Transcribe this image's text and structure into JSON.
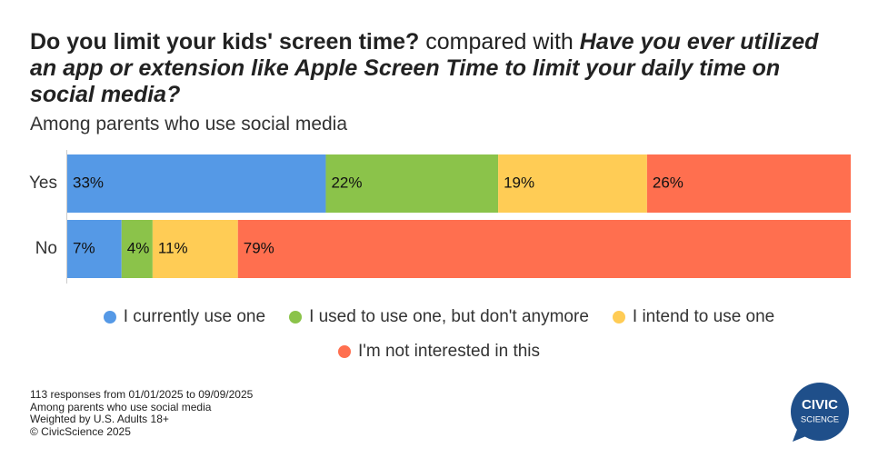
{
  "chart_data": {
    "type": "stacked-bar-horizontal",
    "title": [
      "Do you limit your kids' screen time?",
      "compared with",
      "Have you ever utilized an app or extension like Apple Screen Time to limit your daily time on social media?"
    ],
    "subtitle": "Among parents who use social media",
    "categories": [
      "Yes",
      "No"
    ],
    "series": [
      {
        "name": "I currently use one",
        "color": "#5599e6",
        "values": [
          33,
          7
        ],
        "value_labels": [
          "33%",
          "7%"
        ]
      },
      {
        "name": "I used to use one, but don't anymore",
        "color": "#8bc34a",
        "values": [
          22,
          4
        ],
        "value_labels": [
          "22%",
          "4%"
        ]
      },
      {
        "name": "I intend to use one",
        "color": "#ffcc55",
        "values": [
          19,
          11
        ],
        "value_labels": [
          "19%",
          "11%"
        ]
      },
      {
        "name": "I'm not interested in this",
        "color": "#ff6f4f",
        "values": [
          26,
          79
        ],
        "value_labels": [
          "26%",
          "79%"
        ]
      }
    ]
  },
  "footer": [
    "113 responses from 01/01/2025 to 09/09/2025",
    "Among parents who use social media",
    "Weighted by U.S. Adults 18+",
    "© CivicScience 2025"
  ],
  "logo": [
    "CIVIC",
    "SCIENCE"
  ]
}
